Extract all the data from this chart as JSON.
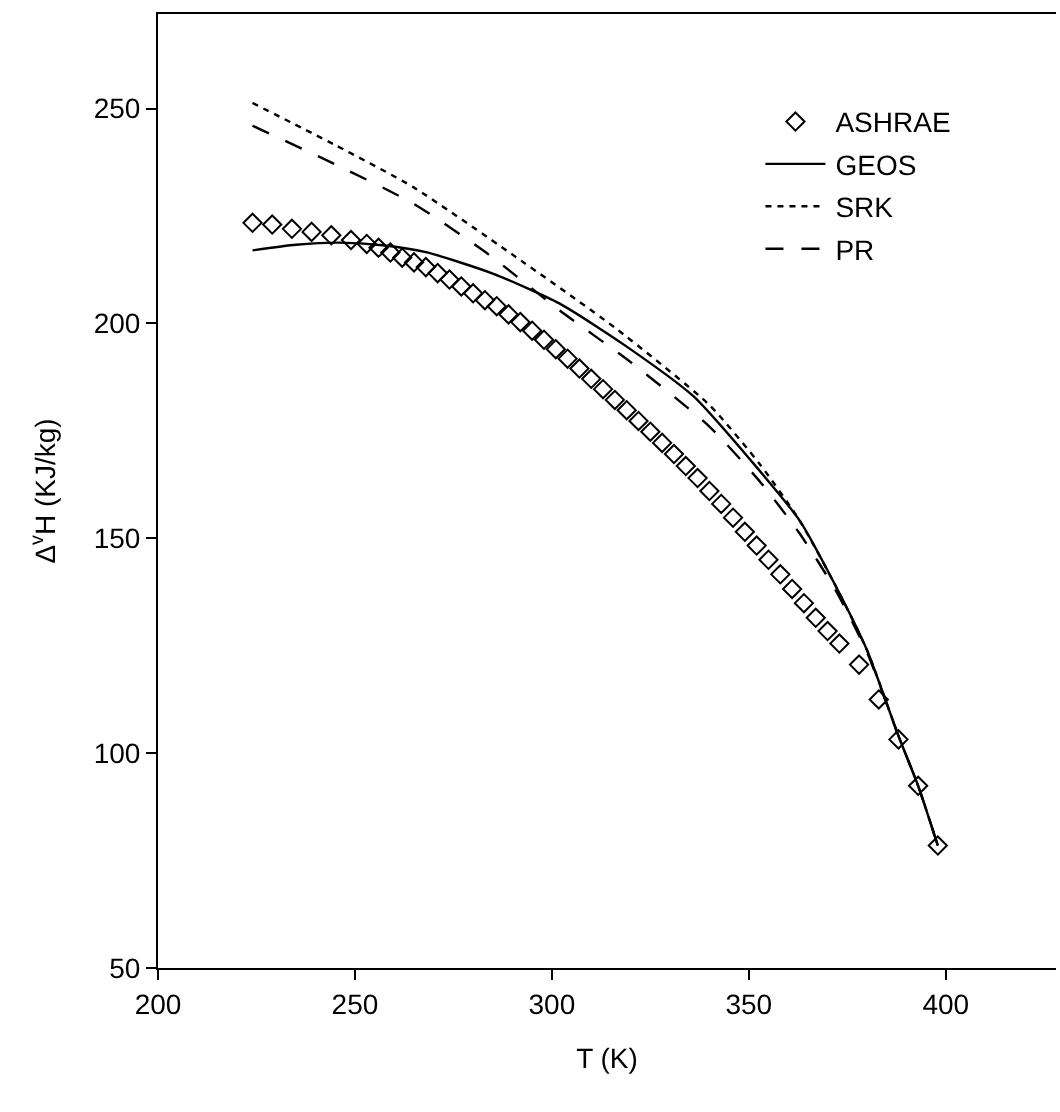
{
  "chart_data": {
    "type": "line",
    "xlabel": "T (K)",
    "ylabel": "Δ$^{v}$H (KJ/kg)",
    "xlim": [
      200,
      428
    ],
    "ylim": [
      50,
      272
    ],
    "xticks": [
      200,
      250,
      300,
      350,
      400
    ],
    "yticks": [
      50,
      100,
      150,
      200,
      250
    ],
    "legend": "top right",
    "series": [
      {
        "name": "ASHRAE",
        "type": "scatter",
        "marker": "diamond",
        "color": "#000000",
        "x": [
          224,
          229,
          234,
          239,
          244,
          249,
          253,
          256,
          259,
          262,
          265,
          268,
          271,
          274,
          277,
          280,
          283,
          286,
          289,
          292,
          295,
          298,
          301,
          304,
          307,
          310,
          313,
          316,
          319,
          322,
          325,
          328,
          331,
          334,
          337,
          340,
          343,
          346,
          349,
          352,
          355,
          358,
          361,
          364,
          367,
          370,
          373,
          378,
          383,
          388,
          393,
          398
        ],
        "values": [
          223.4,
          223,
          222,
          221.3,
          220.5,
          219.4,
          218.5,
          217.6,
          216.5,
          215.3,
          214.2,
          213.1,
          211.7,
          210.2,
          208.6,
          207,
          205.4,
          204,
          202.1,
          200.3,
          198.3,
          196.2,
          194,
          191.8,
          189.5,
          187.1,
          184.7,
          182.2,
          179.8,
          177.3,
          174.8,
          172.2,
          169.6,
          166.8,
          164,
          161,
          158,
          154.8,
          151.5,
          148.3,
          145,
          141.6,
          138.2,
          134.9,
          131.5,
          128.4,
          125.5,
          120.6,
          112.5,
          103.2,
          92.4,
          78.5
        ]
      },
      {
        "name": "GEOS",
        "color": "#000000",
        "line_style": "solid",
        "marker": "none",
        "x": [
          224,
          235,
          246,
          257,
          268,
          285,
          302,
          319,
          336,
          351,
          363,
          372,
          380,
          388,
          393,
          398
        ],
        "values": [
          217,
          218.3,
          218.8,
          218.2,
          216.6,
          211.6,
          204.6,
          194.6,
          183,
          167.6,
          154,
          139,
          124,
          104,
          92.4,
          78.5
        ]
      },
      {
        "name": "SRK",
        "color": "#000000",
        "line_style": "dotted",
        "marker": "none",
        "x": [
          224,
          245,
          265,
          290,
          316,
          340,
          353,
          363,
          372,
          380,
          388,
          393,
          398
        ],
        "values": [
          251.3,
          241.5,
          231.6,
          216,
          199,
          181,
          167,
          154,
          139,
          124,
          104,
          92.4,
          78.5
        ]
      },
      {
        "name": "PR",
        "color": "#000000",
        "line_style": "dashed",
        "marker": "none",
        "x": [
          224,
          245,
          265,
          284,
          302,
          320,
          340,
          353,
          363,
          372,
          380,
          388,
          393,
          398
        ],
        "values": [
          246,
          237,
          227.8,
          216,
          203,
          191,
          176,
          163,
          151,
          138,
          123.5,
          104,
          92.4,
          78.5
        ]
      }
    ]
  }
}
